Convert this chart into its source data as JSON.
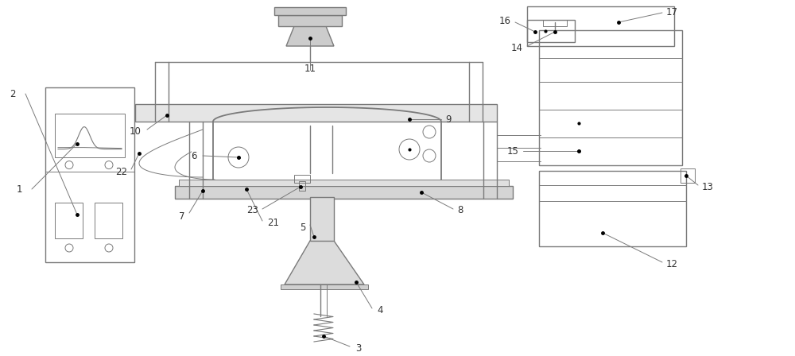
{
  "bg_color": "#ffffff",
  "line_color": "#7a7a7a",
  "label_color": "#333333",
  "figsize": [
    10.0,
    4.48
  ],
  "dpi": 100
}
